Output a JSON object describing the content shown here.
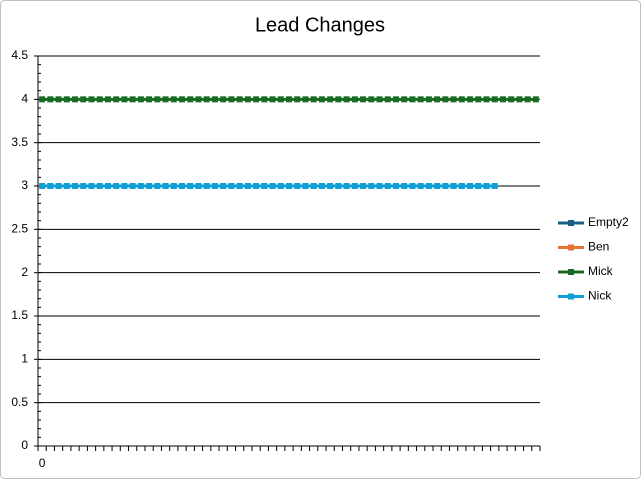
{
  "chart_data": {
    "type": "line",
    "title": "Lead Changes",
    "categories": [
      "0",
      null,
      null,
      null,
      null,
      null,
      null,
      null,
      null,
      null,
      null,
      null,
      null,
      null,
      null,
      null,
      null,
      null,
      null,
      null,
      null,
      null,
      null,
      null,
      null,
      null,
      null,
      null,
      null,
      null,
      null,
      null,
      null,
      null,
      null,
      null,
      null,
      null,
      null,
      null,
      null,
      null,
      null,
      null,
      null,
      null,
      null,
      null,
      null,
      null,
      null,
      null,
      null,
      null,
      null,
      null,
      null,
      null,
      null,
      null,
      null
    ],
    "series": [
      {
        "name": "Empty2",
        "color": "#156082",
        "values": [
          null,
          null,
          null,
          null,
          null,
          null,
          null,
          null,
          null,
          null,
          null,
          null,
          null,
          null,
          null,
          null,
          null,
          null,
          null,
          null,
          null,
          null,
          null,
          null,
          null,
          null,
          null,
          null,
          null,
          null,
          null,
          null,
          null,
          null,
          null,
          null,
          null,
          null,
          null,
          null,
          null,
          null,
          null,
          null,
          null,
          null,
          null,
          null,
          null,
          null,
          null,
          null,
          null,
          null,
          null,
          null,
          null,
          null,
          null,
          null,
          null
        ]
      },
      {
        "name": "Ben",
        "color": "#E97132",
        "values": [
          null,
          null,
          null,
          null,
          null,
          null,
          null,
          null,
          null,
          null,
          null,
          null,
          null,
          null,
          null,
          null,
          null,
          null,
          null,
          null,
          null,
          null,
          null,
          null,
          null,
          null,
          null,
          null,
          null,
          null,
          null,
          null,
          null,
          null,
          null,
          null,
          null,
          null,
          null,
          null,
          null,
          null,
          null,
          null,
          null,
          null,
          null,
          null,
          null,
          null,
          null,
          null,
          null,
          null,
          null,
          null,
          null,
          null,
          null,
          null,
          null
        ]
      },
      {
        "name": "Mick",
        "color": "#196B24",
        "values": [
          4,
          4,
          4,
          4,
          4,
          4,
          4,
          4,
          4,
          4,
          4,
          4,
          4,
          4,
          4,
          4,
          4,
          4,
          4,
          4,
          4,
          4,
          4,
          4,
          4,
          4,
          4,
          4,
          4,
          4,
          4,
          4,
          4,
          4,
          4,
          4,
          4,
          4,
          4,
          4,
          4,
          4,
          4,
          4,
          4,
          4,
          4,
          4,
          4,
          4,
          4,
          4,
          4,
          4,
          4,
          4,
          4,
          4,
          4,
          4,
          4
        ]
      },
      {
        "name": "Nick",
        "color": "#0F9ED5",
        "values": [
          3,
          3,
          3,
          3,
          3,
          3,
          3,
          3,
          3,
          3,
          3,
          3,
          3,
          3,
          3,
          3,
          3,
          3,
          3,
          3,
          3,
          3,
          3,
          3,
          3,
          3,
          3,
          3,
          3,
          3,
          3,
          3,
          3,
          3,
          3,
          3,
          3,
          3,
          3,
          3,
          3,
          3,
          3,
          3,
          3,
          3,
          3,
          3,
          3,
          3,
          3,
          3,
          3,
          3,
          3,
          3,
          null,
          null,
          null,
          null,
          null
        ]
      }
    ],
    "ylim": [
      0,
      4.5
    ],
    "yticks": [
      0,
      0.5,
      1,
      1.5,
      2,
      2.5,
      3,
      3.5,
      4,
      4.5
    ],
    "grid": true,
    "legend": "right"
  }
}
